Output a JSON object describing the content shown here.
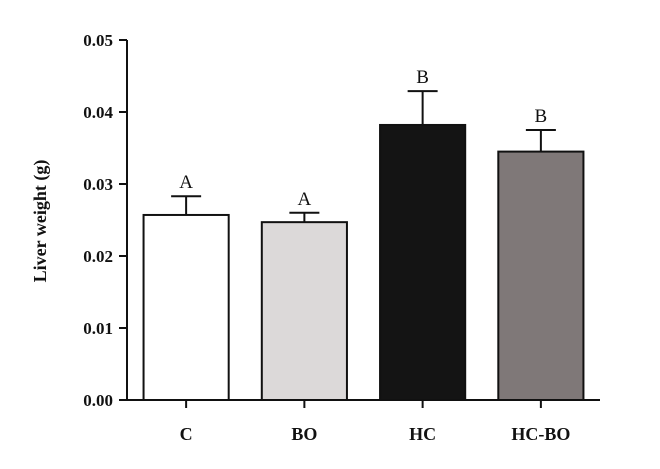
{
  "chart_data": {
    "type": "bar",
    "title": "",
    "xlabel": "",
    "ylabel": "Liver weight (g)",
    "ylim": [
      0,
      0.05
    ],
    "yticks": [
      "0.00",
      "0.01",
      "0.02",
      "0.03",
      "0.04",
      "0.05"
    ],
    "categories": [
      "C",
      "BO",
      "HC",
      "HC-BO"
    ],
    "values": [
      0.0257,
      0.0247,
      0.0382,
      0.0345
    ],
    "errors": [
      0.0026,
      0.0013,
      0.0047,
      0.003
    ],
    "significance": [
      "A",
      "A",
      "B",
      "B"
    ],
    "bar_colors": [
      "#ffffff",
      "#dcd9d9",
      "#141414",
      "#7f7878"
    ],
    "grid": false,
    "legend": "none"
  }
}
